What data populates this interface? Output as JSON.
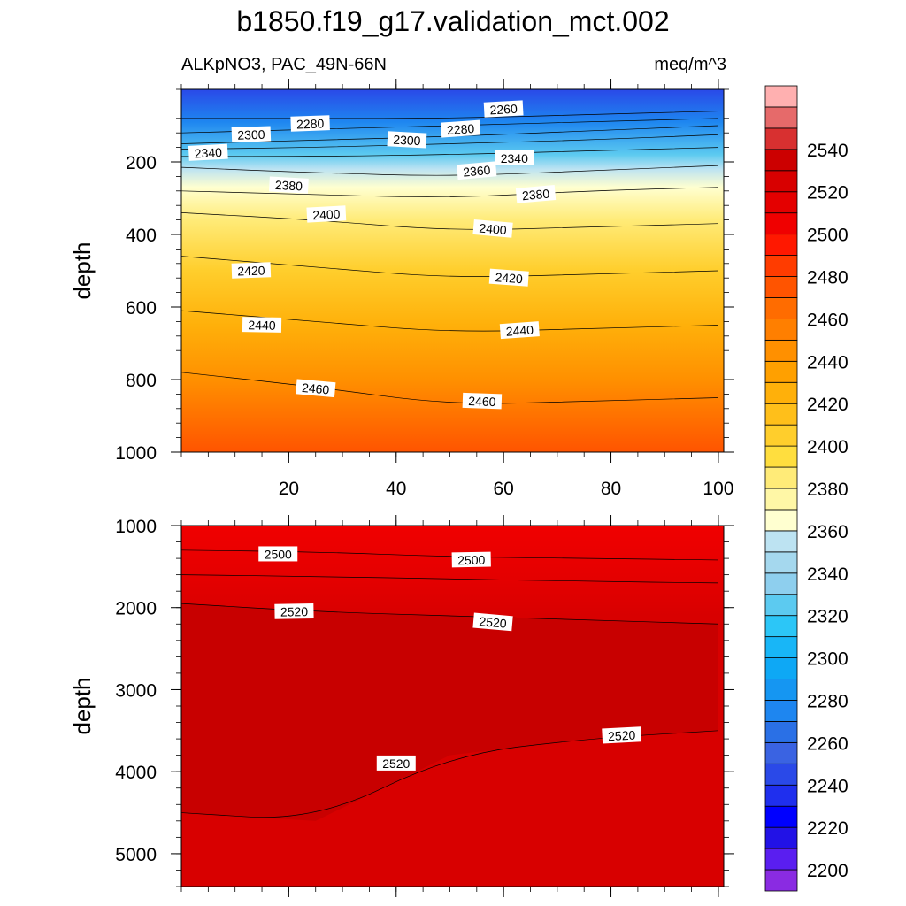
{
  "title": "b1850.f19_g17.validation_mct.002",
  "left_label": "ALKpNO3, PAC_49N-66N",
  "right_label": "meq/m^3",
  "colors": {
    "levels": [
      "#8a2be2",
      "#5a1ef0",
      "#2212e6",
      "#0000ff",
      "#1f2fee",
      "#2a49e8",
      "#3a63e2",
      "#2a70e6",
      "#1e86f0",
      "#1596f2",
      "#0ea8f5",
      "#18b6f7",
      "#2cc6f7",
      "#5ccaf0",
      "#8ecfee",
      "#a5d8ee",
      "#bde3f2",
      "#ffffd0",
      "#fff7a6",
      "#ffeb78",
      "#ffde3e",
      "#ffce2c",
      "#ffbf1a",
      "#ffb00a",
      "#ffa000",
      "#ff9000",
      "#ff7f00",
      "#ff6c00",
      "#ff5400",
      "#ff3c00",
      "#ff1800",
      "#f00000",
      "#e40000",
      "#d80000",
      "#cc0000",
      "#d83030",
      "#e66a6a",
      "#ffb0b0"
    ],
    "contour_line": "#000000"
  },
  "chart_data": [
    {
      "type": "heatmap",
      "panel": "upper",
      "ylabel": "depth",
      "xlabel": "",
      "xlim": [
        0,
        101
      ],
      "ylim": [
        1000,
        0
      ],
      "xticks": [
        "20",
        "40",
        "60",
        "80",
        "100"
      ],
      "yticks": [
        "200",
        "400",
        "600",
        "800",
        "1000"
      ],
      "contours": [
        {
          "level": 2260,
          "depth": [
            80,
            80,
            80,
            70,
            60
          ]
        },
        {
          "level": 2280,
          "depth": [
            120,
            110,
            100,
            90,
            80
          ]
        },
        {
          "level": 2300,
          "depth": [
            150,
            140,
            130,
            115,
            100
          ]
        },
        {
          "level": 2320,
          "depth": [
            165,
            160,
            150,
            140,
            125
          ]
        },
        {
          "level": 2340,
          "depth": [
            185,
            185,
            180,
            170,
            160
          ]
        },
        {
          "level": 2360,
          "depth": [
            215,
            230,
            240,
            225,
            210
          ]
        },
        {
          "level": 2380,
          "depth": [
            280,
            290,
            300,
            280,
            270
          ]
        },
        {
          "level": 2400,
          "depth": [
            340,
            360,
            390,
            380,
            370
          ]
        },
        {
          "level": 2420,
          "depth": [
            460,
            490,
            520,
            510,
            500
          ]
        },
        {
          "level": 2440,
          "depth": [
            610,
            640,
            670,
            660,
            650
          ]
        },
        {
          "level": 2460,
          "depth": [
            780,
            820,
            870,
            860,
            850
          ]
        }
      ],
      "contour_x": [
        0,
        25,
        50,
        75,
        100
      ],
      "contour_labels": [
        {
          "text": "2260",
          "x": 60,
          "depth": 55
        },
        {
          "text": "2280",
          "x": 24,
          "depth": 95
        },
        {
          "text": "2280",
          "x": 52,
          "depth": 110
        },
        {
          "text": "2300",
          "x": 13,
          "depth": 125
        },
        {
          "text": "2300",
          "x": 42,
          "depth": 140
        },
        {
          "text": "2340",
          "x": 5,
          "depth": 175
        },
        {
          "text": "2340",
          "x": 62,
          "depth": 190
        },
        {
          "text": "2360",
          "x": 55,
          "depth": 225
        },
        {
          "text": "2380",
          "x": 20,
          "depth": 265
        },
        {
          "text": "2380",
          "x": 66,
          "depth": 290
        },
        {
          "text": "2400",
          "x": 27,
          "depth": 345
        },
        {
          "text": "2400",
          "x": 58,
          "depth": 385
        },
        {
          "text": "2420",
          "x": 13,
          "depth": 500
        },
        {
          "text": "2420",
          "x": 61,
          "depth": 520
        },
        {
          "text": "2440",
          "x": 15,
          "depth": 650
        },
        {
          "text": "2440",
          "x": 63,
          "depth": 665
        },
        {
          "text": "2460",
          "x": 25,
          "depth": 825
        },
        {
          "text": "2460",
          "x": 56,
          "depth": 860
        }
      ]
    },
    {
      "type": "heatmap",
      "panel": "lower",
      "ylabel": "depth",
      "xlabel": "",
      "xlim": [
        0,
        101
      ],
      "ylim": [
        5400,
        1000
      ],
      "yticks": [
        "1000",
        "2000",
        "3000",
        "4000",
        "5000"
      ],
      "contours": [
        {
          "level": 2500,
          "depth": [
            1300,
            1320,
            1380,
            1400,
            1420
          ]
        },
        {
          "level": 2510,
          "depth": [
            1600,
            1620,
            1650,
            1680,
            1700
          ]
        },
        {
          "level": 2520,
          "depth": [
            1950,
            2050,
            2100,
            2150,
            2200
          ]
        },
        {
          "level": 2520,
          "depth": [
            4500,
            4600,
            3800,
            3600,
            3500
          ]
        }
      ],
      "contour_x": [
        0,
        25,
        50,
        75,
        100
      ],
      "contour_labels": [
        {
          "text": "2500",
          "x": 18,
          "depth": 1350
        },
        {
          "text": "2500",
          "x": 54,
          "depth": 1420
        },
        {
          "text": "2520",
          "x": 21,
          "depth": 2050
        },
        {
          "text": "2520",
          "x": 58,
          "depth": 2180
        },
        {
          "text": "2520",
          "x": 40,
          "depth": 3900
        },
        {
          "text": "2520",
          "x": 82,
          "depth": 3560
        }
      ]
    }
  ],
  "colorbar": {
    "labels": [
      "2200",
      "2220",
      "2240",
      "2260",
      "2280",
      "2300",
      "2320",
      "2340",
      "2360",
      "2380",
      "2400",
      "2420",
      "2440",
      "2460",
      "2480",
      "2500",
      "2520",
      "2540"
    ]
  }
}
